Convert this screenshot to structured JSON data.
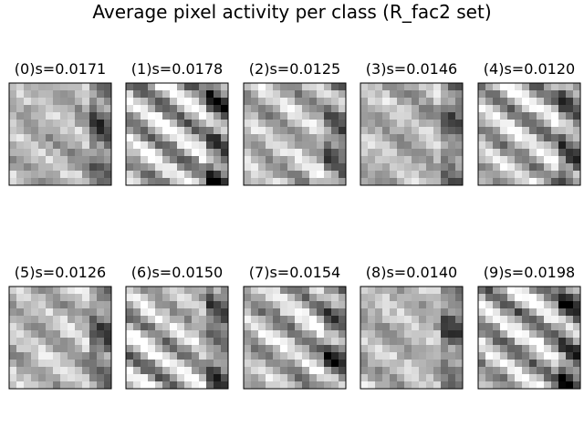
{
  "chart_data": {
    "type": "heatmap",
    "title": "Average pixel activity per class (R_fac2 set)",
    "colormap": "gray_r",
    "grid": false,
    "axes_visible": false,
    "image_resolution": 14,
    "panels": [
      {
        "label": "(0)s=0.0171",
        "class": 0,
        "s": 0.0171
      },
      {
        "label": "(1)s=0.0178",
        "class": 1,
        "s": 0.0178
      },
      {
        "label": "(2)s=0.0125",
        "class": 2,
        "s": 0.0125
      },
      {
        "label": "(3)s=0.0146",
        "class": 3,
        "s": 0.0146
      },
      {
        "label": "(4)s=0.0120",
        "class": 4,
        "s": 0.012
      },
      {
        "label": "(5)s=0.0126",
        "class": 5,
        "s": 0.0126
      },
      {
        "label": "(6)s=0.0150",
        "class": 6,
        "s": 0.015
      },
      {
        "label": "(7)s=0.0154",
        "class": 7,
        "s": 0.0154
      },
      {
        "label": "(8)s=0.0140",
        "class": 8,
        "s": 0.014
      },
      {
        "label": "(9)s=0.0198",
        "class": 9,
        "s": 0.0198
      }
    ]
  }
}
